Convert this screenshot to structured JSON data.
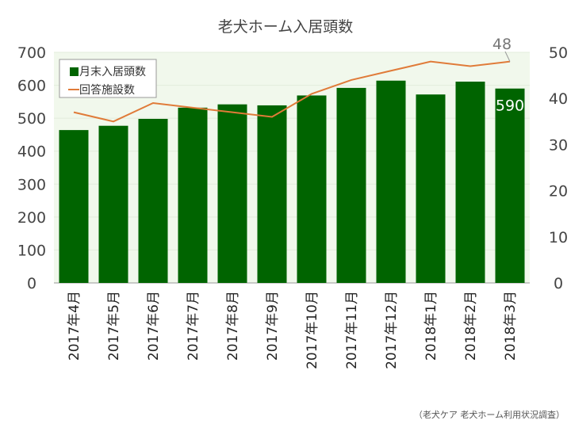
{
  "chart_data": {
    "type": "bar+line",
    "title": "老犬ホーム入居頭数",
    "categories": [
      "2017年4月",
      "2017年5月",
      "2017年6月",
      "2017年7月",
      "2017年8月",
      "2017年9月",
      "2017年10月",
      "2017年11月",
      "2017年12月",
      "2018年1月",
      "2018年2月",
      "2018年3月"
    ],
    "series": [
      {
        "name": "月末入居頭数",
        "type": "bar",
        "axis": "left",
        "color": "#006400",
        "values": [
          464,
          477,
          498,
          532,
          542,
          539,
          569,
          592,
          614,
          572,
          611,
          590
        ]
      },
      {
        "name": "回答施設数",
        "type": "line",
        "axis": "right",
        "color": "#E07B39",
        "values": [
          37,
          35,
          39,
          38,
          37,
          36,
          41,
          44,
          46,
          48,
          47,
          48
        ]
      }
    ],
    "data_labels": {
      "bar_last": "590",
      "line_last": "48"
    },
    "left_axis": {
      "ylim": [
        0,
        700
      ],
      "ticks": [
        "0",
        "100",
        "200",
        "300",
        "400",
        "500",
        "600",
        "700"
      ]
    },
    "right_axis": {
      "ylim": [
        0,
        50
      ],
      "ticks": [
        "0",
        "10",
        "20",
        "30",
        "40",
        "50"
      ]
    },
    "legend": "top-left",
    "grid": true,
    "plot_background": "#F1F8EC",
    "source": "（老犬ケア 老犬ホーム利用状況調査）"
  }
}
